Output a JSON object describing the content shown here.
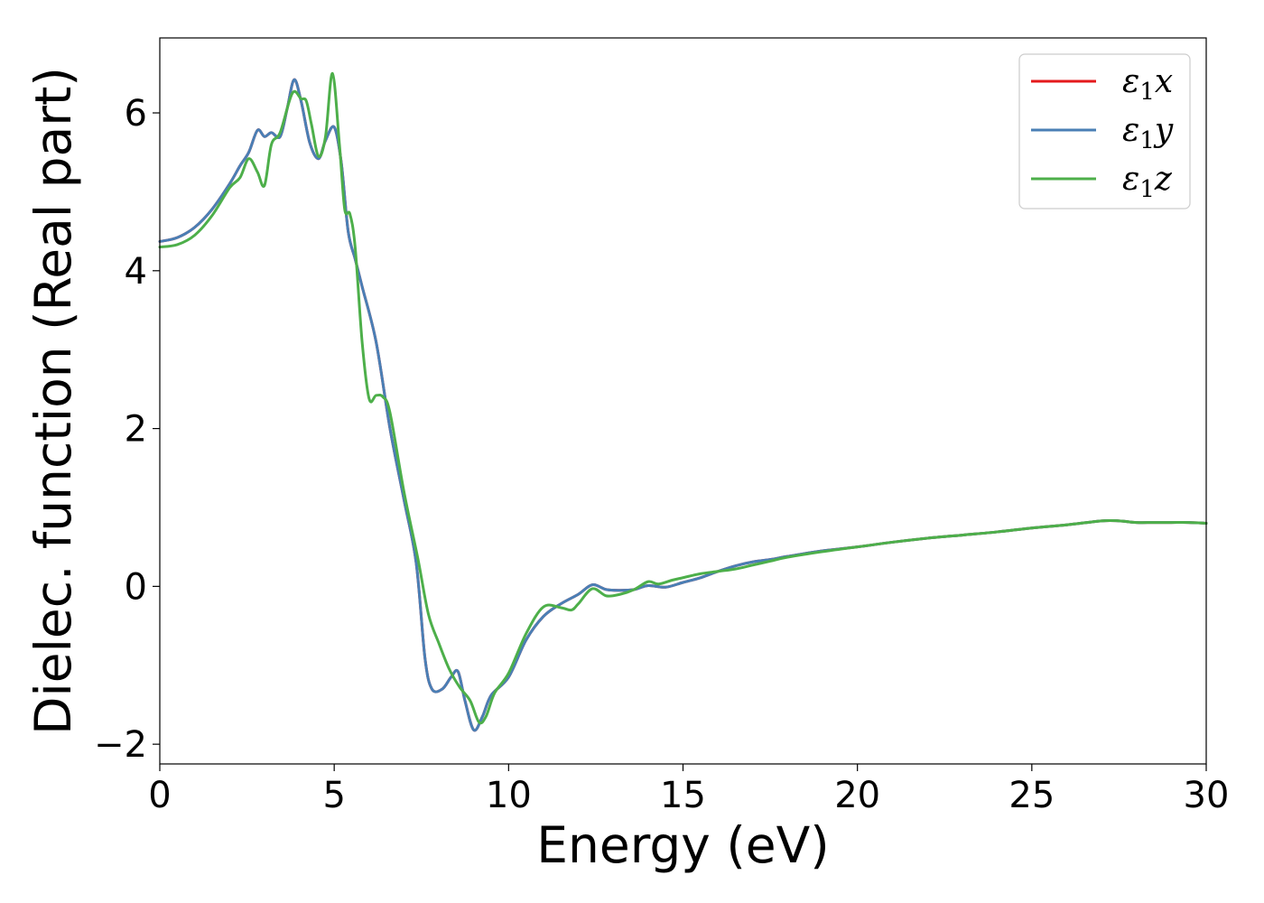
{
  "chart_data": {
    "type": "line",
    "title": "",
    "xlabel": "Energy (eV)",
    "ylabel": "Dielec. function (Real part)",
    "xlim": [
      0,
      30
    ],
    "ylim": [
      -2.25,
      6.95
    ],
    "xticks": [
      0,
      5,
      10,
      15,
      20,
      25,
      30
    ],
    "xtick_labels": [
      "0",
      "5",
      "10",
      "15",
      "20",
      "25",
      "30"
    ],
    "yticks": [
      -2,
      0,
      2,
      4,
      6
    ],
    "ytick_labels": [
      "−2",
      "0",
      "2",
      "4",
      "6"
    ],
    "grid": false,
    "legend_position": "top-right",
    "series": [
      {
        "name": "ε1x",
        "legend_base": "ε",
        "legend_sub": "1",
        "legend_var": "x",
        "color": "#e41a1c",
        "x": [
          0,
          0.5,
          1.0,
          1.5,
          2.0,
          2.3,
          2.55,
          2.8,
          3.0,
          3.2,
          3.45,
          3.65,
          3.85,
          4.05,
          4.3,
          4.55,
          4.75,
          5.0,
          5.2,
          5.4,
          5.6,
          5.8,
          6.2,
          6.6,
          7.0,
          7.35,
          7.6,
          7.8,
          8.1,
          8.35,
          8.55,
          8.75,
          9.0,
          9.25,
          9.5,
          10.0,
          10.5,
          11.0,
          11.5,
          12.0,
          12.4,
          12.8,
          13.2,
          13.6,
          14.0,
          14.5,
          15.0,
          15.5,
          16.0,
          16.5,
          17.0,
          17.5,
          18.0,
          19.0,
          20.0,
          21.0,
          22.0,
          23.0,
          24.0,
          25.0,
          26.0,
          27.0,
          27.5,
          28.0,
          28.5,
          29.0,
          29.5,
          30.0
        ],
        "y": [
          4.37,
          4.42,
          4.55,
          4.78,
          5.1,
          5.33,
          5.5,
          5.78,
          5.7,
          5.75,
          5.7,
          6.05,
          6.42,
          6.15,
          5.62,
          5.42,
          5.65,
          5.82,
          5.38,
          4.5,
          4.15,
          3.8,
          3.1,
          2.0,
          1.1,
          0.3,
          -0.9,
          -1.3,
          -1.3,
          -1.15,
          -1.08,
          -1.45,
          -1.82,
          -1.65,
          -1.38,
          -1.15,
          -0.68,
          -0.38,
          -0.22,
          -0.1,
          0.02,
          -0.04,
          -0.05,
          -0.04,
          0.01,
          -0.01,
          0.05,
          0.11,
          0.19,
          0.26,
          0.31,
          0.34,
          0.38,
          0.45,
          0.5,
          0.56,
          0.61,
          0.65,
          0.69,
          0.74,
          0.78,
          0.83,
          0.83,
          0.81,
          0.81,
          0.81,
          0.81,
          0.8
        ]
      },
      {
        "name": "ε1y",
        "legend_base": "ε",
        "legend_sub": "1",
        "legend_var": "y",
        "color": "#4a7fb5",
        "x": [
          0,
          0.5,
          1.0,
          1.5,
          2.0,
          2.3,
          2.55,
          2.8,
          3.0,
          3.2,
          3.45,
          3.65,
          3.85,
          4.05,
          4.3,
          4.55,
          4.75,
          5.0,
          5.2,
          5.4,
          5.6,
          5.8,
          6.2,
          6.6,
          7.0,
          7.35,
          7.6,
          7.8,
          8.1,
          8.35,
          8.55,
          8.75,
          9.0,
          9.25,
          9.5,
          10.0,
          10.5,
          11.0,
          11.5,
          12.0,
          12.4,
          12.8,
          13.2,
          13.6,
          14.0,
          14.5,
          15.0,
          15.5,
          16.0,
          16.5,
          17.0,
          17.5,
          18.0,
          19.0,
          20.0,
          21.0,
          22.0,
          23.0,
          24.0,
          25.0,
          26.0,
          27.0,
          27.5,
          28.0,
          28.5,
          29.0,
          29.5,
          30.0
        ],
        "y": [
          4.37,
          4.42,
          4.55,
          4.78,
          5.1,
          5.33,
          5.5,
          5.78,
          5.7,
          5.75,
          5.7,
          6.05,
          6.42,
          6.15,
          5.62,
          5.42,
          5.65,
          5.82,
          5.38,
          4.5,
          4.15,
          3.8,
          3.1,
          2.0,
          1.1,
          0.3,
          -0.9,
          -1.3,
          -1.3,
          -1.15,
          -1.08,
          -1.45,
          -1.82,
          -1.65,
          -1.38,
          -1.15,
          -0.68,
          -0.38,
          -0.22,
          -0.1,
          0.02,
          -0.04,
          -0.05,
          -0.04,
          0.01,
          -0.01,
          0.05,
          0.11,
          0.19,
          0.26,
          0.31,
          0.34,
          0.38,
          0.45,
          0.5,
          0.56,
          0.61,
          0.65,
          0.69,
          0.74,
          0.78,
          0.83,
          0.83,
          0.81,
          0.81,
          0.81,
          0.81,
          0.8
        ]
      },
      {
        "name": "ε1z",
        "legend_base": "ε",
        "legend_sub": "1",
        "legend_var": "z",
        "color": "#4daf4a",
        "x": [
          0,
          0.5,
          1.0,
          1.5,
          2.0,
          2.3,
          2.55,
          2.8,
          3.0,
          3.2,
          3.45,
          3.8,
          4.05,
          4.2,
          4.35,
          4.55,
          4.75,
          4.95,
          5.15,
          5.3,
          5.45,
          5.6,
          5.8,
          6.0,
          6.2,
          6.4,
          6.6,
          7.0,
          7.4,
          7.7,
          8.0,
          8.3,
          8.6,
          8.9,
          9.15,
          9.35,
          9.6,
          10.0,
          10.5,
          11.0,
          11.5,
          11.8,
          12.0,
          12.4,
          12.8,
          13.2,
          13.6,
          14.0,
          14.3,
          14.7,
          15.0,
          15.5,
          16.0,
          16.5,
          17.0,
          17.5,
          18.0,
          19.0,
          20.0,
          21.0,
          22.0,
          23.0,
          24.0,
          25.0,
          26.0,
          27.0,
          27.5,
          28.0,
          28.5,
          29.0,
          29.5,
          30.0
        ],
        "y": [
          4.3,
          4.33,
          4.45,
          4.7,
          5.05,
          5.18,
          5.42,
          5.25,
          5.08,
          5.6,
          5.75,
          6.25,
          6.18,
          6.15,
          5.85,
          5.45,
          5.7,
          6.5,
          5.6,
          4.78,
          4.72,
          4.3,
          3.1,
          2.38,
          2.42,
          2.4,
          2.2,
          1.2,
          0.35,
          -0.35,
          -0.72,
          -1.05,
          -1.28,
          -1.45,
          -1.72,
          -1.65,
          -1.35,
          -1.1,
          -0.6,
          -0.26,
          -0.27,
          -0.3,
          -0.22,
          -0.03,
          -0.12,
          -0.1,
          -0.04,
          0.06,
          0.03,
          0.08,
          0.11,
          0.16,
          0.19,
          0.22,
          0.27,
          0.32,
          0.37,
          0.44,
          0.5,
          0.56,
          0.61,
          0.65,
          0.69,
          0.74,
          0.78,
          0.83,
          0.83,
          0.81,
          0.81,
          0.81,
          0.81,
          0.8
        ]
      }
    ]
  }
}
